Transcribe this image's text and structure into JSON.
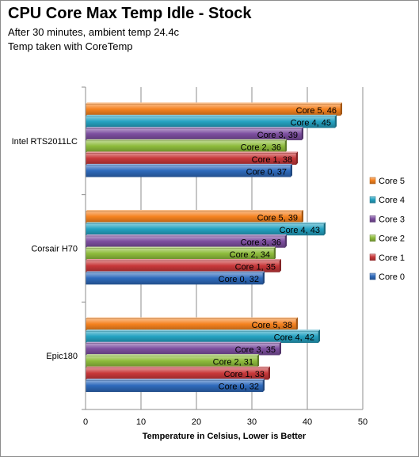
{
  "chart_data": {
    "type": "bar",
    "orientation": "horizontal",
    "title": "CPU Core Max Temp Idle - Stock",
    "subtitle_lines": [
      "After 30 minutes, ambient temp 24.4c",
      "Temp taken with CoreTemp"
    ],
    "xlabel": "Temperature in Celsius,  Lower is Better",
    "ylabel": "",
    "xlim": [
      0,
      50
    ],
    "x_ticks": [
      "0",
      "10",
      "20",
      "30",
      "40",
      "50"
    ],
    "grid": true,
    "legend_position": "right",
    "categories": [
      "Intel RTS2011LC",
      "Corsair H70",
      "Epic180"
    ],
    "series": [
      {
        "name": "Core 5",
        "color": "#f5821f",
        "values": [
          46,
          39,
          38
        ],
        "labels": [
          "Core 5, 46",
          "Core 5, 39",
          "Core 5, 38"
        ]
      },
      {
        "name": "Core 4",
        "color": "#25a3c2",
        "values": [
          45,
          43,
          42
        ],
        "labels": [
          "Core 4, 45",
          "Core 4, 43",
          "Core 4, 42"
        ]
      },
      {
        "name": "Core 3",
        "color": "#7d4fa0",
        "values": [
          39,
          36,
          35
        ],
        "labels": [
          "Core 3, 39",
          "Core 3, 36",
          "Core 3, 35"
        ]
      },
      {
        "name": "Core 2",
        "color": "#8ebc3c",
        "values": [
          36,
          34,
          31
        ],
        "labels": [
          "Core 2, 36",
          "Core 2, 34",
          "Core 2, 31"
        ]
      },
      {
        "name": "Core 1",
        "color": "#c8383a",
        "values": [
          38,
          35,
          33
        ],
        "labels": [
          "Core 1, 38",
          "Core 1, 35",
          "Core 1, 33"
        ]
      },
      {
        "name": "Core 0",
        "color": "#2f6bbd",
        "values": [
          37,
          32,
          32
        ],
        "labels": [
          "Core 0, 37",
          "Core 0, 32",
          "Core 0, 32"
        ]
      }
    ]
  }
}
